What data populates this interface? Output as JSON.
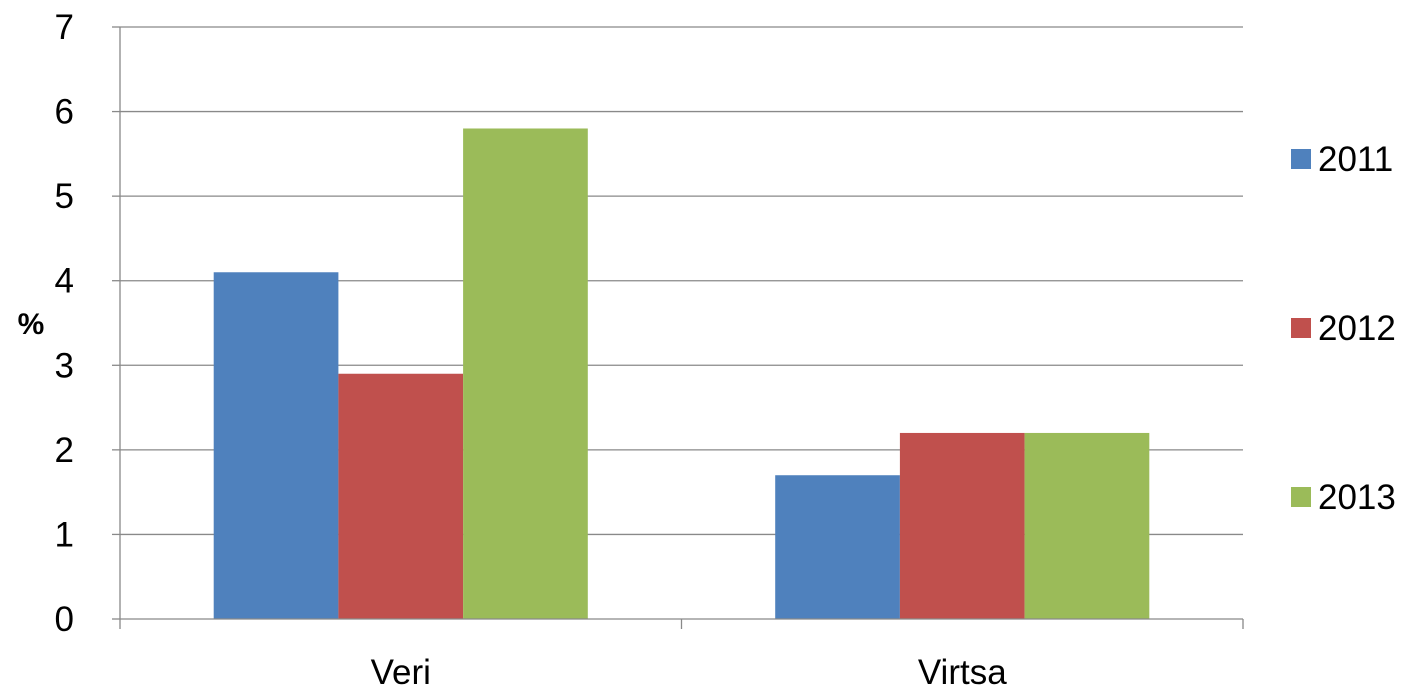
{
  "chart_data": {
    "type": "bar",
    "title": "",
    "xlabel": "",
    "ylabel": "%",
    "categories": [
      "Veri",
      "Virtsa"
    ],
    "series": [
      {
        "name": "2011",
        "values": [
          4.1,
          1.7
        ],
        "color": "#4F81BD"
      },
      {
        "name": "2012",
        "values": [
          2.9,
          2.2
        ],
        "color": "#C0504D"
      },
      {
        "name": "2013",
        "values": [
          5.8,
          2.2
        ],
        "color": "#9BBB59"
      }
    ],
    "ylim": [
      0,
      7
    ],
    "yticks": [
      0,
      1,
      2,
      3,
      4,
      5,
      6,
      7
    ],
    "grid": true,
    "legend": "right"
  }
}
